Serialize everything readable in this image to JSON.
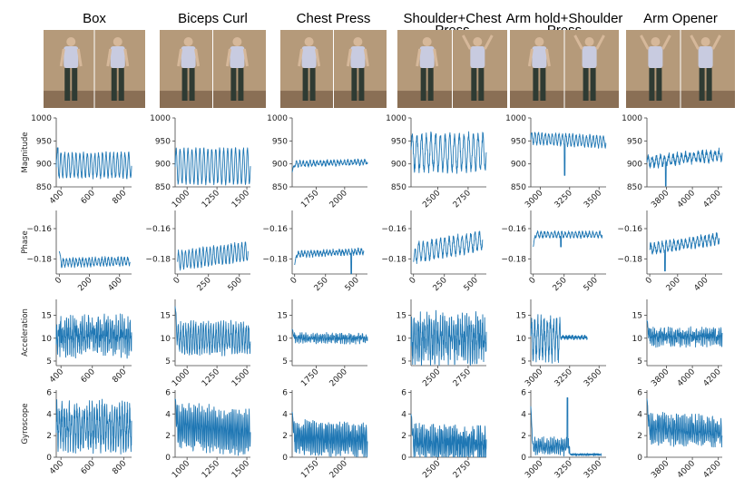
{
  "figure": {
    "row_labels": [
      "Magnitude",
      "Phase",
      "Acceleration",
      "Gyroscope"
    ],
    "columns": [
      {
        "title": "Box",
        "title_lines": [
          "Box"
        ],
        "photo_alt": "Person performing box exercise"
      },
      {
        "title": "Biceps Curl",
        "title_lines": [
          "Biceps Curl"
        ],
        "photo_alt": "Person performing biceps curl"
      },
      {
        "title": "Chest Press",
        "title_lines": [
          "Chest Press"
        ],
        "photo_alt": "Person performing chest press"
      },
      {
        "title": "Shoulder+Chest Press",
        "title_lines": [
          "Shoulder+Chest",
          "Press"
        ],
        "photo_alt": "Person performing shoulder and chest press"
      },
      {
        "title": "Arm hold+Shoulder Press",
        "title_lines": [
          "Arm hold+Shoulder",
          "Press"
        ],
        "photo_alt": "Person performing arm hold and shoulder press"
      },
      {
        "title": "Arm Opener",
        "title_lines": [
          "Arm Opener"
        ],
        "photo_alt": "Person performing arm opener"
      }
    ],
    "colors": {
      "series": "#1f77b4",
      "photo_wall": "#b59a7a",
      "photo_floor": "#8a6f55"
    }
  },
  "chart_data": [
    {
      "type": "line",
      "row": "Magnitude",
      "column": "Box",
      "ylabel": "Magnitude",
      "xlim": [
        370,
        850
      ],
      "ylim": [
        850,
        1000
      ],
      "xticks": [
        "400",
        "600",
        "800"
      ],
      "xtick_values": [
        400,
        600,
        800
      ],
      "yticks": [
        "850",
        "900",
        "950",
        "1000"
      ],
      "ytick_values": [
        850,
        900,
        950,
        1000
      ],
      "xtick_rotation": -45,
      "series": {
        "x_range": [
          370,
          850
        ],
        "base": 897,
        "amp": 26,
        "cycles": 20,
        "noise": 4,
        "trend": 0,
        "spike": [
          0.02,
          935
        ]
      }
    },
    {
      "type": "line",
      "row": "Magnitude",
      "column": "Biceps Curl",
      "ylabel": "",
      "xlim": [
        900,
        1530
      ],
      "ylim": [
        850,
        1000
      ],
      "xticks": [
        "1000",
        "1250",
        "1500"
      ],
      "xtick_values": [
        1000,
        1250,
        1500
      ],
      "yticks": [
        "850",
        "900",
        "950",
        "1000"
      ],
      "ytick_values": [
        850,
        900,
        950,
        1000
      ],
      "xtick_rotation": -45,
      "series": {
        "x_range": [
          900,
          1530
        ],
        "base": 895,
        "amp": 38,
        "cycles": 19,
        "noise": 3,
        "trend": 0
      }
    },
    {
      "type": "line",
      "row": "Magnitude",
      "column": "Chest Press",
      "ylabel": "",
      "xlim": [
        1540,
        2200
      ],
      "ylim": [
        850,
        1000
      ],
      "xticks": [
        "1750",
        "2000"
      ],
      "xtick_values": [
        1750,
        2000
      ],
      "yticks": [
        "850",
        "900",
        "950",
        "1000"
      ],
      "ytick_values": [
        850,
        900,
        950,
        1000
      ],
      "xtick_rotation": -45,
      "series": {
        "x_range": [
          1540,
          2200
        ],
        "base": 902,
        "amp": 5,
        "cycles": 22,
        "noise": 3,
        "trend": 4,
        "start": 882
      }
    },
    {
      "type": "line",
      "row": "Magnitude",
      "column": "Shoulder+Chest Press",
      "ylabel": "",
      "xlim": [
        2280,
        2900
      ],
      "ylim": [
        850,
        1000
      ],
      "xticks": [
        "2500",
        "2750"
      ],
      "xtick_values": [
        2500,
        2750
      ],
      "yticks": [
        "850",
        "900",
        "950",
        "1000"
      ],
      "ytick_values": [
        850,
        900,
        950,
        1000
      ],
      "xtick_rotation": -45,
      "series": {
        "x_range": [
          2280,
          2900
        ],
        "base": 925,
        "amp": 38,
        "cycles": 16,
        "noise": 8,
        "trend": 0
      }
    },
    {
      "type": "line",
      "row": "Magnitude",
      "column": "Arm hold+Shoulder Press",
      "ylabel": "",
      "xlim": [
        2920,
        3560
      ],
      "ylim": [
        850,
        1000
      ],
      "xticks": [
        "3000",
        "3250",
        "3500"
      ],
      "xtick_values": [
        3000,
        3250,
        3500
      ],
      "yticks": [
        "850",
        "900",
        "950",
        "1000"
      ],
      "ytick_values": [
        850,
        900,
        950,
        1000
      ],
      "xtick_rotation": -45,
      "series": {
        "x_range": [
          2920,
          3560
        ],
        "base": 952,
        "amp": 12,
        "cycles": 22,
        "noise": 3,
        "trend": -8,
        "spike": [
          0.45,
          875
        ]
      }
    },
    {
      "type": "line",
      "row": "Magnitude",
      "column": "Arm Opener",
      "ylabel": "",
      "xlim": [
        3650,
        4230
      ],
      "ylim": [
        850,
        1000
      ],
      "xticks": [
        "3800",
        "4000",
        "4200"
      ],
      "xtick_values": [
        3800,
        4000,
        4200
      ],
      "yticks": [
        "850",
        "900",
        "950",
        "1000"
      ],
      "ytick_values": [
        850,
        900,
        950,
        1000
      ],
      "xtick_rotation": -45,
      "series": {
        "x_range": [
          3650,
          4230
        ],
        "base": 912,
        "amp": 10,
        "cycles": 18,
        "noise": 6,
        "trend": 15,
        "spike": [
          0.25,
          852
        ]
      }
    },
    {
      "type": "line",
      "row": "Phase",
      "column": "Box",
      "ylabel": "Phase",
      "xlim": [
        -20,
        480
      ],
      "ylim": [
        -0.19,
        -0.148
      ],
      "xticks": [
        "0",
        "200",
        "400"
      ],
      "xtick_values": [
        0,
        200,
        400
      ],
      "yticks": [
        "−0.18",
        "−0.16"
      ],
      "ytick_values": [
        -0.18,
        -0.16
      ],
      "xtick_rotation": -45,
      "series": {
        "x_range": [
          0,
          470
        ],
        "base": -0.182,
        "amp": 0.0025,
        "cycles": 22,
        "noise": 0.001,
        "trend": 0.001,
        "start": -0.175
      }
    },
    {
      "type": "line",
      "row": "Phase",
      "column": "Biceps Curl",
      "ylabel": "",
      "xlim": [
        -20,
        590
      ],
      "ylim": [
        -0.19,
        -0.148
      ],
      "xticks": [
        "0",
        "250",
        "500"
      ],
      "xtick_values": [
        0,
        250,
        500
      ],
      "yticks": [
        "−0.18",
        "−0.16"
      ],
      "ytick_values": [
        -0.18,
        -0.16
      ],
      "xtick_rotation": -45,
      "series": {
        "x_range": [
          0,
          570
        ],
        "base": -0.178,
        "amp": 0.006,
        "cycles": 20,
        "noise": 0.001,
        "trend": 0.006
      }
    },
    {
      "type": "line",
      "row": "Phase",
      "column": "Chest Press",
      "ylabel": "",
      "xlim": [
        -20,
        590
      ],
      "ylim": [
        -0.19,
        -0.148
      ],
      "xticks": [
        "0",
        "250",
        "500"
      ],
      "xtick_values": [
        0,
        250,
        500
      ],
      "yticks": [
        "−0.18",
        "−0.16"
      ],
      "ytick_values": [
        -0.18,
        -0.16
      ],
      "xtick_rotation": -45,
      "series": {
        "x_range": [
          0,
          560
        ],
        "base": -0.176,
        "amp": 0.0015,
        "cycles": 22,
        "noise": 0.001,
        "trend": 0.002,
        "start": -0.184,
        "spike": [
          0.82,
          -0.19
        ]
      }
    },
    {
      "type": "line",
      "row": "Phase",
      "column": "Shoulder+Chest Press",
      "ylabel": "",
      "xlim": [
        -20,
        590
      ],
      "ylim": [
        -0.19,
        -0.148
      ],
      "xticks": [
        "0",
        "250",
        "500"
      ],
      "xtick_values": [
        0,
        250,
        500
      ],
      "yticks": [
        "−0.18",
        "−0.16"
      ],
      "ytick_values": [
        -0.18,
        -0.16
      ],
      "xtick_rotation": -45,
      "series": {
        "x_range": [
          0,
          560
        ],
        "base": -0.172,
        "amp": 0.006,
        "cycles": 16,
        "noise": 0.0015,
        "trend": 0.008,
        "start": -0.182
      }
    },
    {
      "type": "line",
      "row": "Phase",
      "column": "Arm hold+Shoulder Press",
      "ylabel": "",
      "xlim": [
        -20,
        590
      ],
      "ylim": [
        -0.19,
        -0.148
      ],
      "xticks": [
        "0",
        "250",
        "500"
      ],
      "xtick_values": [
        0,
        250,
        500
      ],
      "yticks": [
        "−0.18",
        "−0.16"
      ],
      "ytick_values": [
        -0.18,
        -0.16
      ],
      "xtick_rotation": -45,
      "series": {
        "x_range": [
          0,
          560
        ],
        "base": -0.164,
        "amp": 0.0018,
        "cycles": 20,
        "noise": 0.0008,
        "trend": 0,
        "start": -0.172,
        "spike": [
          0.4,
          -0.172
        ]
      }
    },
    {
      "type": "line",
      "row": "Phase",
      "column": "Arm Opener",
      "ylabel": "",
      "xlim": [
        -20,
        520
      ],
      "ylim": [
        -0.19,
        -0.148
      ],
      "xticks": [
        "0",
        "200",
        "400"
      ],
      "xtick_values": [
        0,
        200,
        400
      ],
      "yticks": [
        "−0.18",
        "−0.16"
      ],
      "ytick_values": [
        -0.18,
        -0.16
      ],
      "xtick_rotation": -45,
      "series": {
        "x_range": [
          0,
          500
        ],
        "base": -0.17,
        "amp": 0.003,
        "cycles": 18,
        "noise": 0.0015,
        "trend": 0.007,
        "spike": [
          0.22,
          -0.188
        ]
      }
    },
    {
      "type": "line",
      "row": "Acceleration",
      "column": "Box",
      "ylabel": "Acceleration",
      "xlim": [
        370,
        850
      ],
      "ylim": [
        4,
        18.5
      ],
      "xticks": [
        "400",
        "600",
        "800"
      ],
      "xtick_values": [
        400,
        600,
        800
      ],
      "yticks": [
        "5",
        "10",
        "15"
      ],
      "ytick_values": [
        5,
        10,
        15
      ],
      "xtick_rotation": -45,
      "series": {
        "x_range": [
          370,
          850
        ],
        "base": 10.5,
        "amp": 2.5,
        "cycles": 38,
        "noise": 2.5,
        "trend": 0
      }
    },
    {
      "type": "line",
      "row": "Acceleration",
      "column": "Biceps Curl",
      "ylabel": "",
      "xlim": [
        900,
        1530
      ],
      "ylim": [
        4,
        18.5
      ],
      "xticks": [
        "1000",
        "1250",
        "1500"
      ],
      "xtick_values": [
        1000,
        1250,
        1500
      ],
      "yticks": [
        "5",
        "10",
        "15"
      ],
      "ytick_values": [
        5,
        10,
        15
      ],
      "xtick_rotation": -45,
      "series": {
        "x_range": [
          900,
          1530
        ],
        "base": 10,
        "amp": 2.8,
        "cycles": 30,
        "noise": 1.2,
        "trend": 0,
        "start": 17
      }
    },
    {
      "type": "line",
      "row": "Acceleration",
      "column": "Chest Press",
      "ylabel": "",
      "xlim": [
        1540,
        2200
      ],
      "ylim": [
        4,
        18.5
      ],
      "xticks": [
        "1750",
        "2000"
      ],
      "xtick_values": [
        1750,
        2000
      ],
      "yticks": [
        "5",
        "10",
        "15"
      ],
      "ytick_values": [
        5,
        10,
        15
      ],
      "xtick_rotation": -45,
      "series": {
        "x_range": [
          1540,
          2200
        ],
        "base": 10,
        "amp": 0.6,
        "cycles": 40,
        "noise": 0.7,
        "trend": 0,
        "start": 12
      }
    },
    {
      "type": "line",
      "row": "Acceleration",
      "column": "Shoulder+Chest Press",
      "ylabel": "",
      "xlim": [
        2280,
        2900
      ],
      "ylim": [
        4,
        18.5
      ],
      "xticks": [
        "2500",
        "2750"
      ],
      "xtick_values": [
        2500,
        2750
      ],
      "yticks": [
        "5",
        "10",
        "15"
      ],
      "ytick_values": [
        5,
        10,
        15
      ],
      "xtick_rotation": -45,
      "series": {
        "x_range": [
          2280,
          2900
        ],
        "base": 10,
        "amp": 3.5,
        "cycles": 34,
        "noise": 2.8,
        "trend": 0
      }
    },
    {
      "type": "line",
      "row": "Acceleration",
      "column": "Arm hold+Shoulder Press",
      "ylabel": "",
      "xlim": [
        2920,
        3560
      ],
      "ylim": [
        4,
        18.5
      ],
      "xticks": [
        "3000",
        "3250",
        "3500"
      ],
      "xtick_values": [
        3000,
        3250,
        3500
      ],
      "yticks": [
        "5",
        "10",
        "15"
      ],
      "ytick_values": [
        5,
        10,
        15
      ],
      "xtick_rotation": -45,
      "series": {
        "x_range": [
          2920,
          3400
        ],
        "base": 10,
        "amp": 4,
        "cycles": 18,
        "noise": 1.5,
        "trend": 0,
        "calm_after": 0.52,
        "calm_level": 10.2
      }
    },
    {
      "type": "line",
      "row": "Acceleration",
      "column": "Arm Opener",
      "ylabel": "",
      "xlim": [
        3650,
        4230
      ],
      "ylim": [
        4,
        18.5
      ],
      "xticks": [
        "3800",
        "4000",
        "4200"
      ],
      "xtick_values": [
        3800,
        4000,
        4200
      ],
      "yticks": [
        "5",
        "10",
        "15"
      ],
      "ytick_values": [
        5,
        10,
        15
      ],
      "xtick_rotation": -45,
      "series": {
        "x_range": [
          3650,
          4230
        ],
        "base": 10.3,
        "amp": 1,
        "cycles": 40,
        "noise": 1.3,
        "trend": 0,
        "start": 14
      }
    },
    {
      "type": "line",
      "row": "Gyroscope",
      "column": "Box",
      "ylabel": "Gyroscope",
      "xlim": [
        370,
        850
      ],
      "ylim": [
        0,
        6.2
      ],
      "xticks": [
        "400",
        "600",
        "800"
      ],
      "xtick_values": [
        400,
        600,
        800
      ],
      "yticks": [
        "0",
        "2",
        "4",
        "6"
      ],
      "ytick_values": [
        0,
        2,
        4,
        6
      ],
      "xtick_rotation": -45,
      "series": {
        "x_range": [
          370,
          850
        ],
        "base": 2.8,
        "amp": 1.6,
        "cycles": 30,
        "noise": 1,
        "trend": 0
      }
    },
    {
      "type": "line",
      "row": "Gyroscope",
      "column": "Biceps Curl",
      "ylabel": "",
      "xlim": [
        900,
        1530
      ],
      "ylim": [
        0,
        6.2
      ],
      "xticks": [
        "1000",
        "1250",
        "1500"
      ],
      "xtick_values": [
        1000,
        1250,
        1500
      ],
      "yticks": [
        "0",
        "2",
        "4",
        "6"
      ],
      "ytick_values": [
        0,
        2,
        4,
        6
      ],
      "xtick_rotation": -45,
      "series": {
        "x_range": [
          900,
          1530
        ],
        "base": 2.6,
        "amp": 1.7,
        "cycles": 45,
        "noise": 0.6,
        "trend": -0.8,
        "start": 5.4
      }
    },
    {
      "type": "line",
      "row": "Gyroscope",
      "column": "Chest Press",
      "ylabel": "",
      "xlim": [
        1540,
        2200
      ],
      "ylim": [
        0,
        6.2
      ],
      "xticks": [
        "1750",
        "2000"
      ],
      "xtick_values": [
        1750,
        2000
      ],
      "yticks": [
        "0",
        "2",
        "4",
        "6"
      ],
      "ytick_values": [
        0,
        2,
        4,
        6
      ],
      "xtick_rotation": -45,
      "series": {
        "x_range": [
          1540,
          2200
        ],
        "base": 1.7,
        "amp": 1.2,
        "cycles": 48,
        "noise": 0.5,
        "trend": -0.3,
        "start": 4.2
      }
    },
    {
      "type": "line",
      "row": "Gyroscope",
      "column": "Shoulder+Chest Press",
      "ylabel": "",
      "xlim": [
        2280,
        2900
      ],
      "ylim": [
        0,
        6.2
      ],
      "xticks": [
        "2500",
        "2750"
      ],
      "xtick_values": [
        2500,
        2750
      ],
      "yticks": [
        "0",
        "2",
        "4",
        "6"
      ],
      "ytick_values": [
        0,
        2,
        4,
        6
      ],
      "xtick_rotation": -45,
      "series": {
        "x_range": [
          2280,
          2900
        ],
        "base": 1.3,
        "amp": 1,
        "cycles": 48,
        "noise": 0.8,
        "trend": -0.3,
        "start": 4
      }
    },
    {
      "type": "line",
      "row": "Gyroscope",
      "column": "Arm hold+Shoulder Press",
      "ylabel": "",
      "xlim": [
        2920,
        3560
      ],
      "ylim": [
        0,
        6.2
      ],
      "xticks": [
        "3000",
        "3250",
        "3500"
      ],
      "xtick_values": [
        3000,
        3250,
        3500
      ],
      "yticks": [
        "0",
        "2",
        "4",
        "6"
      ],
      "ytick_values": [
        0,
        2,
        4,
        6
      ],
      "xtick_rotation": -45,
      "series": {
        "x_range": [
          2920,
          3520
        ],
        "base": 1.0,
        "amp": 0.5,
        "cycles": 40,
        "noise": 0.4,
        "trend": 0,
        "start": 4.7,
        "calm_after": 0.55,
        "calm_level": 0.25,
        "spike": [
          0.52,
          5.5
        ]
      }
    },
    {
      "type": "line",
      "row": "Gyroscope",
      "column": "Arm Opener",
      "ylabel": "",
      "xlim": [
        3650,
        4230
      ],
      "ylim": [
        0,
        6.2
      ],
      "xticks": [
        "3800",
        "4000",
        "4200"
      ],
      "xtick_values": [
        3800,
        4000,
        4200
      ],
      "yticks": [
        "0",
        "2",
        "4",
        "6"
      ],
      "ytick_values": [
        0,
        2,
        4,
        6
      ],
      "xtick_rotation": -45,
      "series": {
        "x_range": [
          3650,
          4230
        ],
        "base": 2.5,
        "amp": 1,
        "cycles": 44,
        "noise": 0.6,
        "trend": -0.3,
        "start": 5.4
      }
    }
  ]
}
